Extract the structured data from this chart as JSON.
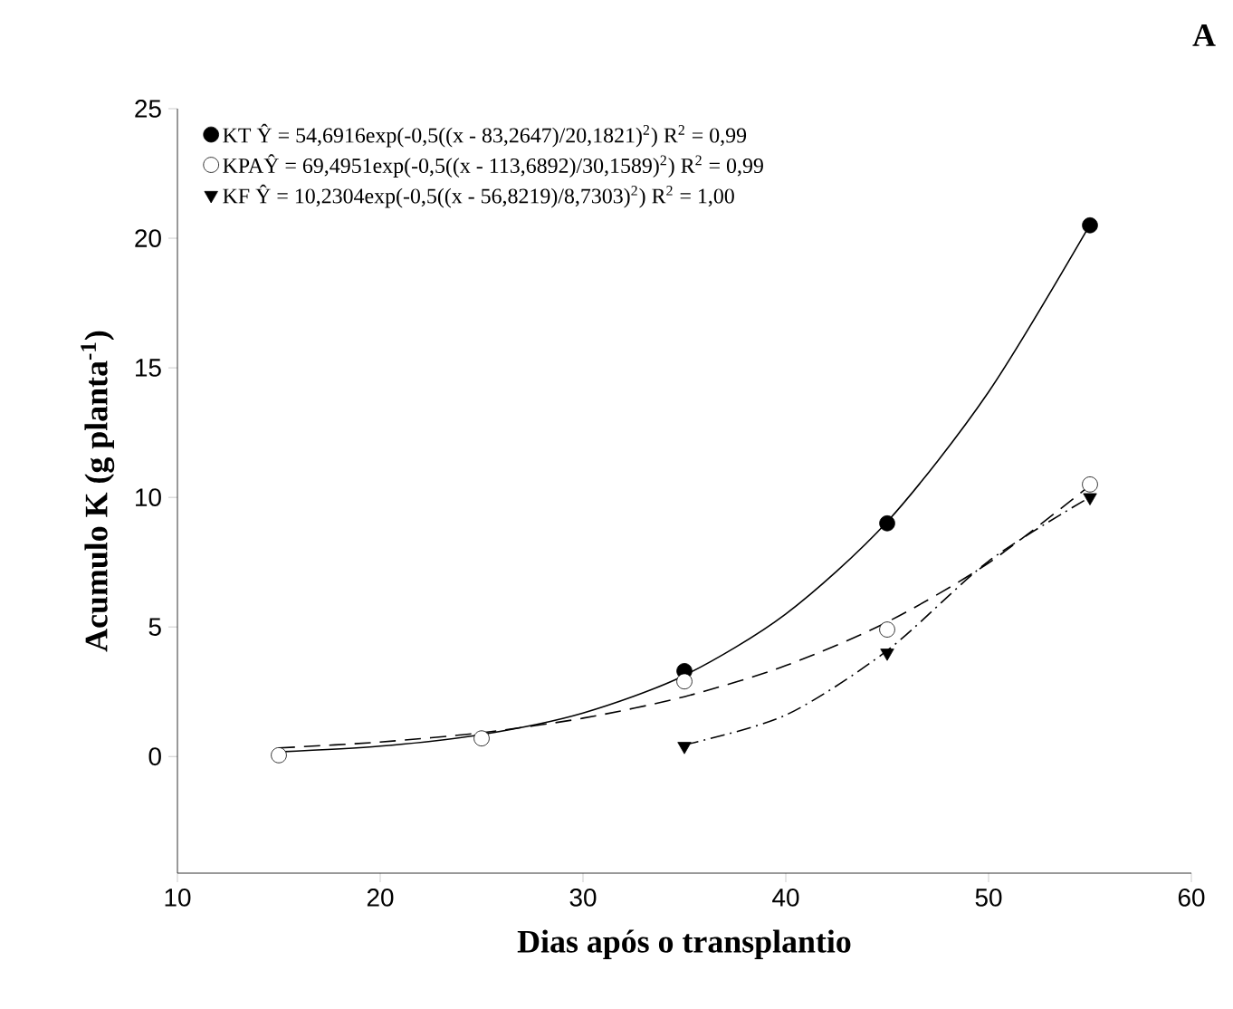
{
  "chart_data": {
    "type": "scatter",
    "xlabel": "Dias após o transplantio",
    "ylabel": "Acumulo K (g planta$^{-1}$)",
    "annotations": [
      "A"
    ],
    "xlim": [
      10,
      60
    ],
    "xticks": [
      10,
      20,
      30,
      40,
      50,
      60
    ],
    "ylim": [
      -4.5,
      25
    ],
    "yticks": [
      0,
      5,
      10,
      15,
      20,
      25
    ],
    "grid": false,
    "legend": "top left",
    "series": [
      {
        "name": "KT  Ŷ = 54,6916exp(-0,5((x - 83,2647)/20,1821)$^{2}$)  R$^{2}$ = 0,99",
        "marker": "circle",
        "color": "#000000",
        "x": [
          35,
          45,
          55
        ],
        "values": [
          3.3,
          9.0,
          20.5
        ]
      },
      {
        "name": "KPAŶ = 69,4951exp(-0,5((x - 113,6892)/30,1589)$^{2}$)  R$^{2}$ = 0,99",
        "marker": "circle",
        "color": "#ffffff",
        "x": [
          15,
          25,
          35,
          45,
          55
        ],
        "values": [
          0.05,
          0.7,
          2.9,
          4.9,
          10.5
        ]
      },
      {
        "name": "KF  Ŷ = 10,2304exp(-0,5((x - 56,8219)/8,7303)$^{2}$)  R$^{2}$ = 1,00",
        "marker": "triangle",
        "color": "#000000",
        "x": [
          35,
          45,
          55
        ],
        "values": [
          0.4,
          4.0,
          10.0
        ]
      },
      {
        "type": "line",
        "line_style": "solid",
        "color": "#000000",
        "x": [
          15,
          20,
          25,
          30,
          35,
          40,
          45,
          50,
          55
        ],
        "values": [
          0.18,
          0.4,
          0.85,
          1.68,
          3.13,
          5.5,
          9.06,
          14.07,
          20.52
        ]
      },
      {
        "type": "line",
        "line_style": "dashed",
        "color": "#000000",
        "x": [
          15,
          20,
          25,
          30,
          35,
          40,
          45,
          50,
          55
        ],
        "values": [
          0.33,
          0.56,
          0.92,
          1.48,
          2.31,
          3.51,
          5.19,
          7.47,
          10.46
        ]
      },
      {
        "type": "line",
        "line_style": "dashdot",
        "color": "#000000",
        "x": [
          35,
          40,
          45,
          50,
          55
        ],
        "values": [
          0.45,
          1.6,
          4.09,
          7.54,
          10.01
        ]
      }
    ]
  }
}
